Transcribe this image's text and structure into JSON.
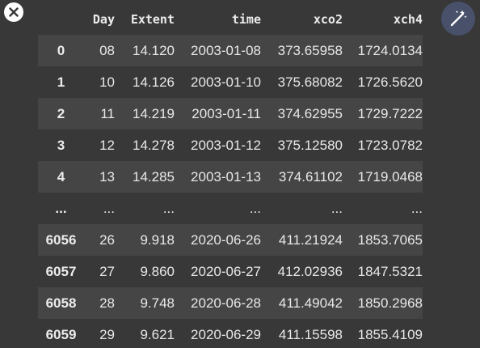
{
  "table": {
    "columns": [
      "",
      "Day",
      "Extent",
      "time",
      "xco2",
      "xch4"
    ],
    "rows": [
      [
        "0",
        "08",
        "14.120",
        "2003-01-08",
        "373.65958",
        "1724.0134"
      ],
      [
        "1",
        "10",
        "14.126",
        "2003-01-10",
        "375.68082",
        "1726.5620"
      ],
      [
        "2",
        "11",
        "14.219",
        "2003-01-11",
        "374.62955",
        "1729.7222"
      ],
      [
        "3",
        "12",
        "14.278",
        "2003-01-12",
        "375.12580",
        "1723.0782"
      ],
      [
        "4",
        "13",
        "14.285",
        "2003-01-13",
        "374.61102",
        "1719.0468"
      ],
      [
        "...",
        "...",
        "...",
        "...",
        "...",
        "..."
      ],
      [
        "6056",
        "26",
        "9.918",
        "2020-06-26",
        "411.21924",
        "1853.7065"
      ],
      [
        "6057",
        "27",
        "9.860",
        "2020-06-27",
        "412.02936",
        "1847.5321"
      ],
      [
        "6058",
        "28",
        "9.748",
        "2020-06-28",
        "411.49042",
        "1850.2968"
      ],
      [
        "6059",
        "29",
        "9.621",
        "2020-06-29",
        "411.15598",
        "1855.4109"
      ]
    ]
  },
  "icons": {
    "close": "close-icon",
    "magic": "magic-wand-icon"
  },
  "colors": {
    "background": "#383838",
    "row_stripe": "#454545",
    "magic_button": "#48506a"
  }
}
